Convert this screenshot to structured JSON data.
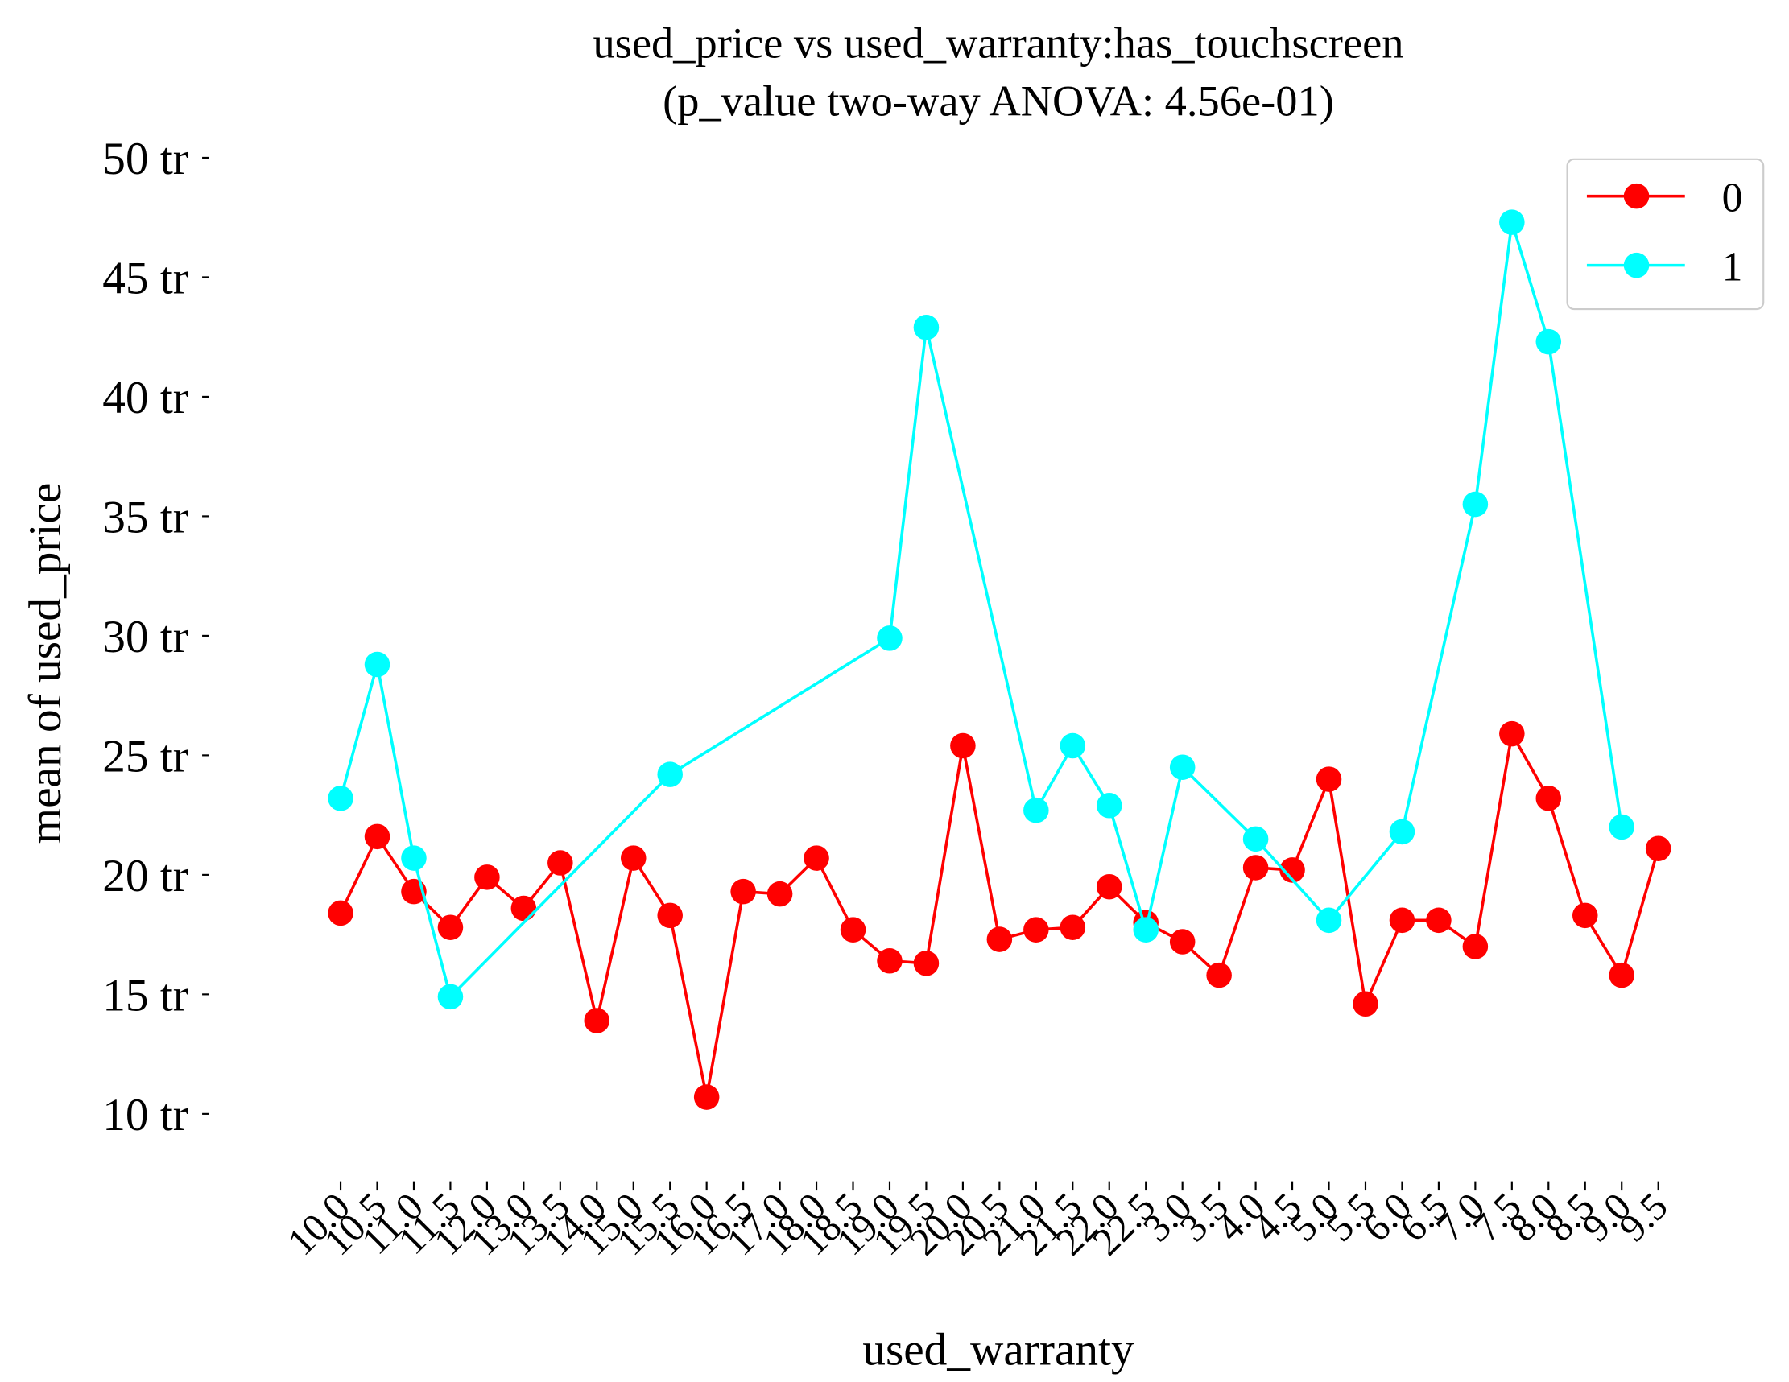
{
  "chart_data": {
    "type": "line",
    "title": "used_price vs used_warranty:has_touchscreen",
    "subtitle": "(p_value two-way ANOVA: 4.56e-01)",
    "x_label": "used_warranty",
    "y_label": "mean of used_price",
    "categories": [
      "10.0",
      "10.5",
      "11.0",
      "11.5",
      "12.0",
      "13.0",
      "13.5",
      "14.0",
      "15.0",
      "15.5",
      "16.0",
      "16.5",
      "17.0",
      "18.0",
      "18.5",
      "19.0",
      "19.5",
      "20.0",
      "20.5",
      "21.0",
      "21.5",
      "22.0",
      "22.5",
      "3.0",
      "3.5",
      "4.0",
      "4.5",
      "5.0",
      "5.5",
      "6.0",
      "6.5",
      "7.0",
      "7.5",
      "8.0",
      "8.5",
      "9.0",
      "9.5"
    ],
    "series": [
      {
        "name": "0",
        "color": "#ff0000",
        "values": [
          18.4,
          21.6,
          19.3,
          17.8,
          19.9,
          18.6,
          20.5,
          13.9,
          20.7,
          18.3,
          10.7,
          19.3,
          19.2,
          20.7,
          17.7,
          16.4,
          16.3,
          25.4,
          17.3,
          17.7,
          17.8,
          19.5,
          18.0,
          17.2,
          15.8,
          20.3,
          20.2,
          24.0,
          14.6,
          18.1,
          18.1,
          17.0,
          25.9,
          23.2,
          18.3,
          15.8,
          21.1
        ]
      },
      {
        "name": "1",
        "color": "#00ffff",
        "x": [
          "10.0",
          "10.5",
          "11.0",
          "11.5",
          "15.5",
          "19.0",
          "19.5",
          "21.0",
          "21.5",
          "22.0",
          "22.5",
          "3.0",
          "4.0",
          "5.0",
          "6.0",
          "7.0",
          "7.5",
          "8.0",
          "9.0"
        ],
        "values": [
          23.2,
          28.8,
          20.7,
          14.9,
          24.2,
          29.9,
          42.9,
          22.7,
          25.4,
          22.9,
          17.7,
          24.5,
          21.5,
          18.1,
          21.8,
          35.5,
          47.3,
          42.3,
          22.0
        ]
      }
    ],
    "ylim": [
      8,
      51
    ],
    "yticks": [
      {
        "value": 10,
        "label": "10 tr"
      },
      {
        "value": 15,
        "label": "15 tr"
      },
      {
        "value": 20,
        "label": "20 tr"
      },
      {
        "value": 25,
        "label": "25 tr"
      },
      {
        "value": 30,
        "label": "30 tr"
      },
      {
        "value": 35,
        "label": "35 tr"
      },
      {
        "value": 40,
        "label": "40 tr"
      },
      {
        "value": 45,
        "label": "45 tr"
      },
      {
        "value": 50,
        "label": "50 tr"
      }
    ],
    "legend": "upper right",
    "grid": false
  }
}
